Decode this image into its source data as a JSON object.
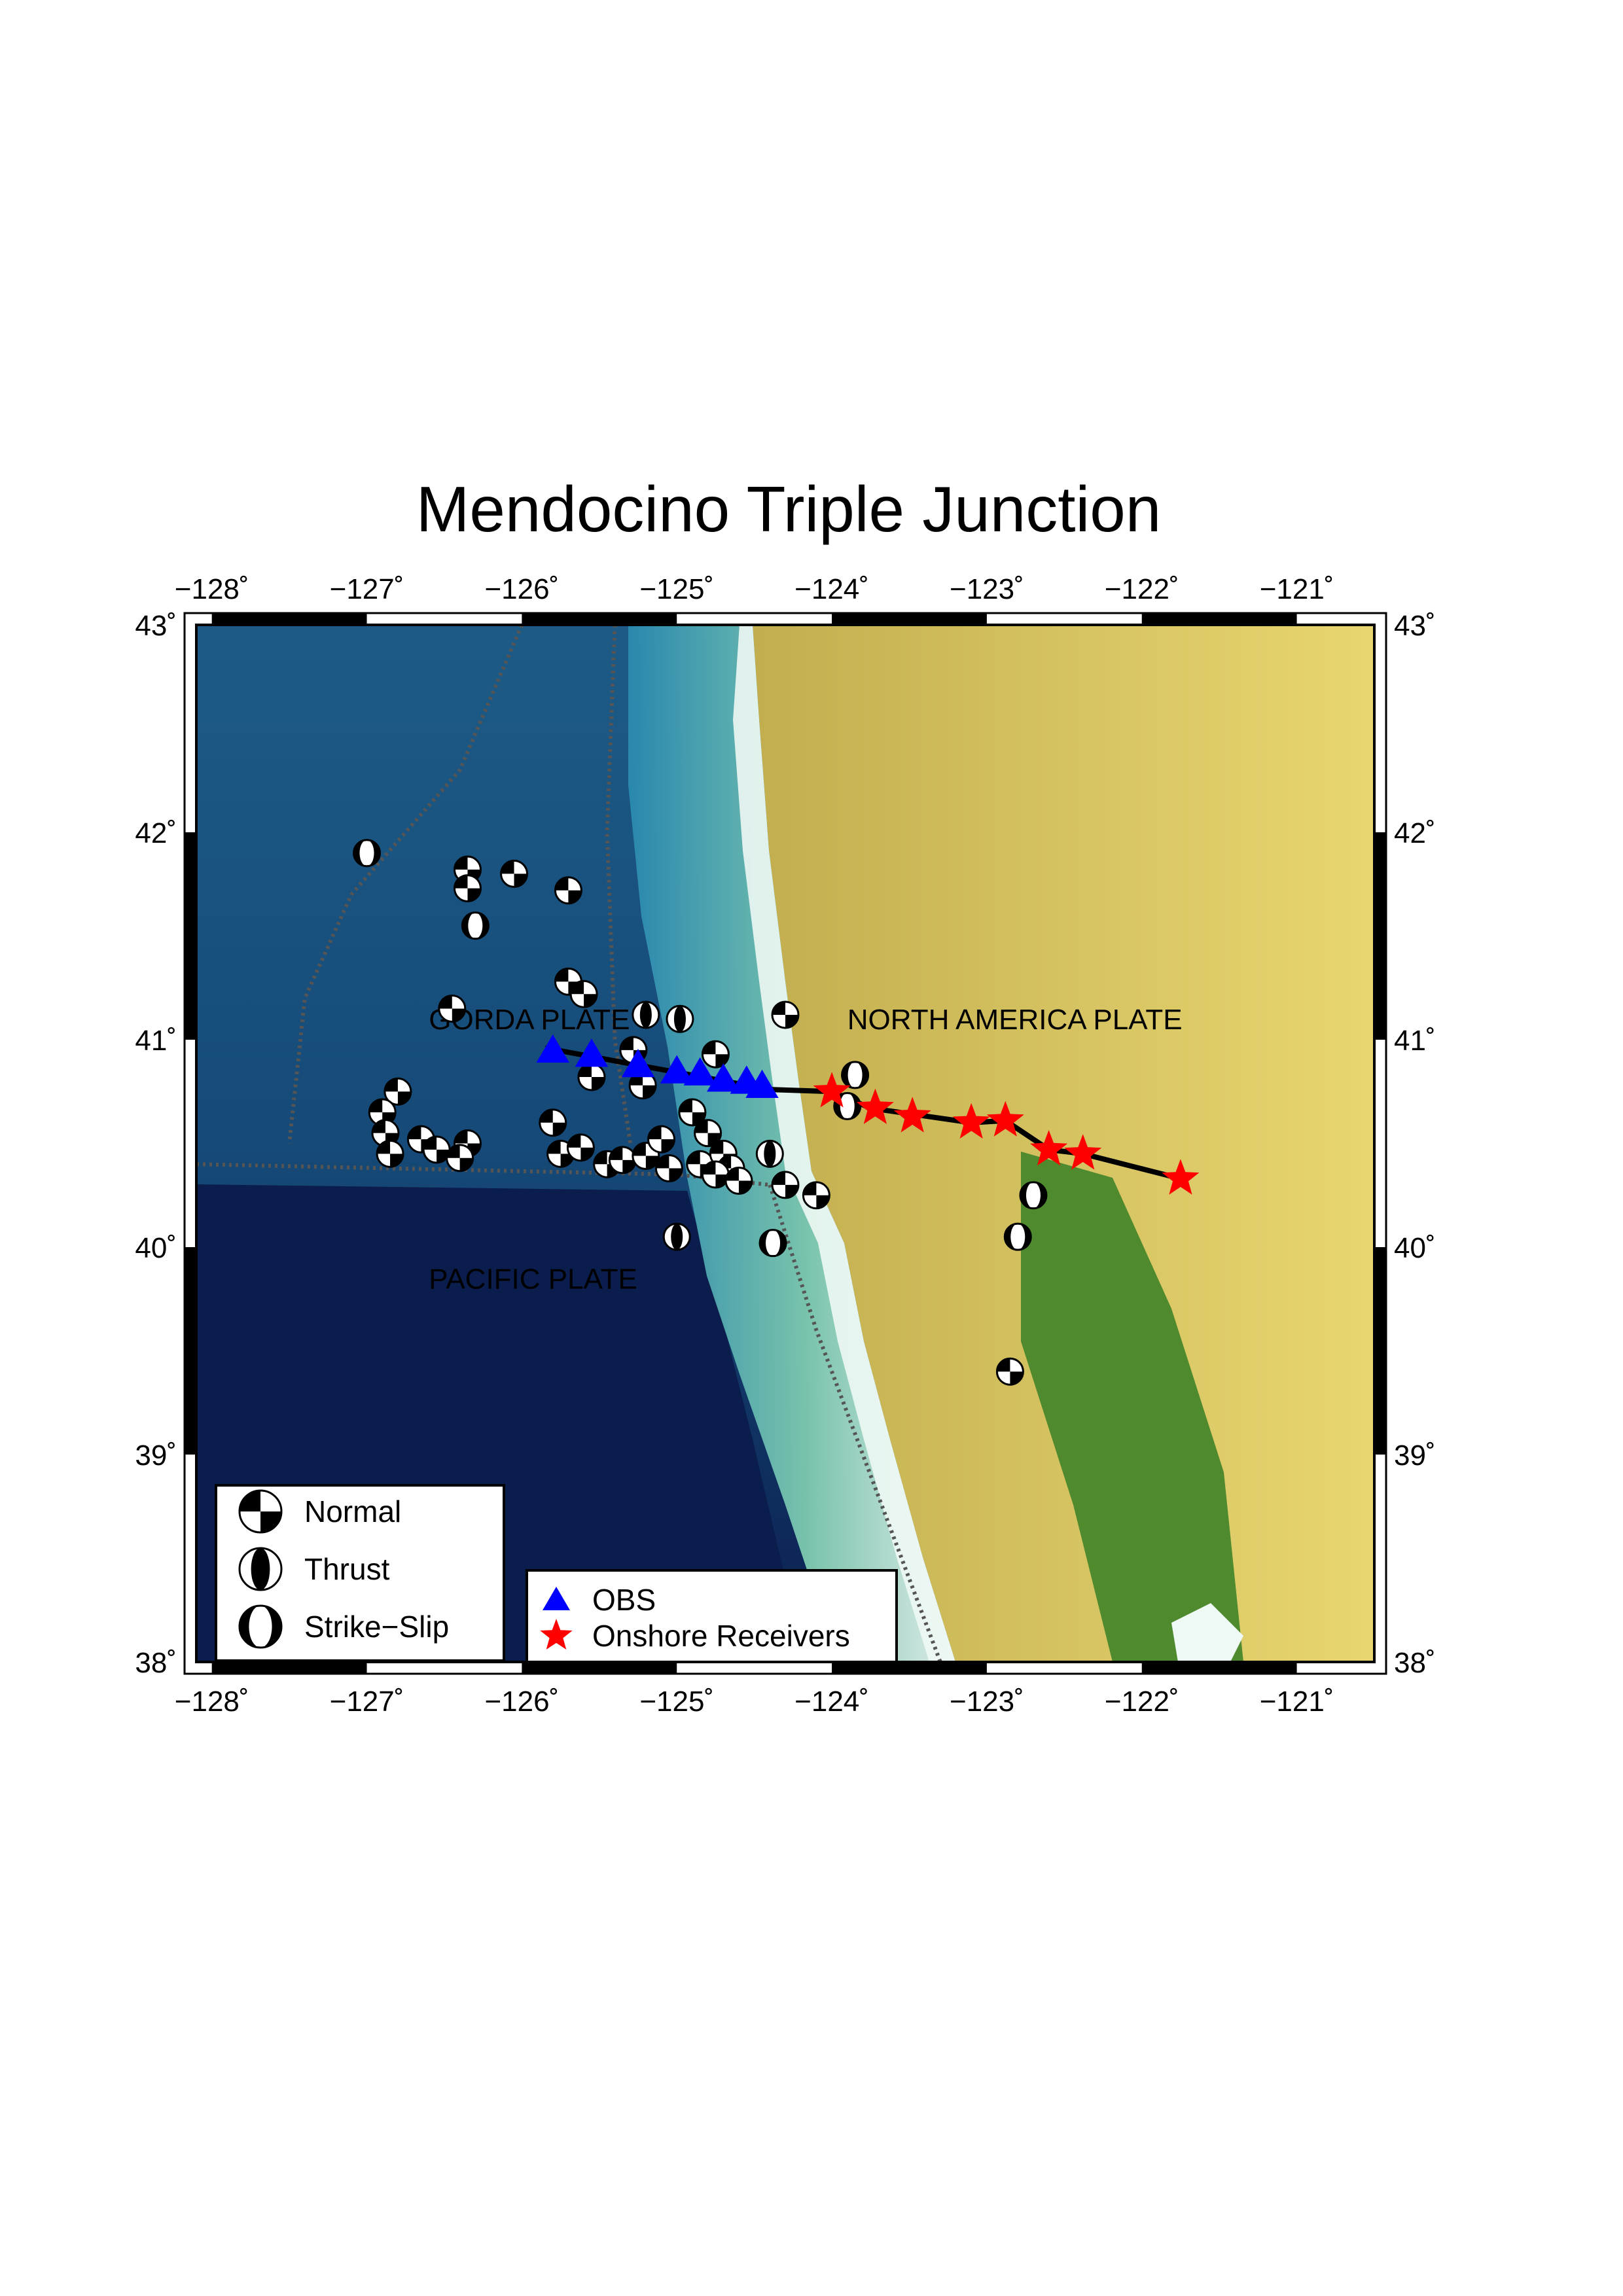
{
  "title": "Mendocino Triple Junction",
  "extent": {
    "lon_min": -128.1,
    "lon_max": -120.5,
    "lat_min": 38.0,
    "lat_max": 43.0
  },
  "lon_ticks": [
    {
      "value": -128,
      "label": "−128˚"
    },
    {
      "value": -127,
      "label": "−127˚"
    },
    {
      "value": -126,
      "label": "−126˚"
    },
    {
      "value": -125,
      "label": "−125˚"
    },
    {
      "value": -124,
      "label": "−124˚"
    },
    {
      "value": -123,
      "label": "−123˚"
    },
    {
      "value": -122,
      "label": "−122˚"
    },
    {
      "value": -121,
      "label": "−121˚"
    }
  ],
  "lat_ticks": [
    {
      "value": 43,
      "label": "43˚"
    },
    {
      "value": 42,
      "label": "42˚"
    },
    {
      "value": 41,
      "label": "41˚"
    },
    {
      "value": 40,
      "label": "40˚"
    },
    {
      "value": 39,
      "label": "39˚"
    },
    {
      "value": 38,
      "label": "38˚"
    }
  ],
  "plate_labels": [
    {
      "text": "GORDA PLATE",
      "lon": -126.6,
      "lat": 41.05
    },
    {
      "text": "NORTH AMERICA PLATE",
      "lon": -123.9,
      "lat": 41.05
    },
    {
      "text": "PACIFIC PLATE",
      "lon": -126.6,
      "lat": 39.8
    }
  ],
  "colors": {
    "deep_ocean": "#0a1a4a",
    "ocean": "#1e5a8a",
    "shelf": "#7ec8b0",
    "coast": "#e8f6f0",
    "land_low": "#4a7a2a",
    "land_mid": "#b8a24a",
    "land_high": "#e6d470",
    "obs": "#0000ff",
    "onshore": "#ff0000",
    "profile": "#000000",
    "plate_boundary": "#555555"
  },
  "obs_stations": [
    {
      "lon": -125.8,
      "lat": 40.95
    },
    {
      "lon": -125.55,
      "lat": 40.93
    },
    {
      "lon": -125.25,
      "lat": 40.88
    },
    {
      "lon": -125.0,
      "lat": 40.85
    },
    {
      "lon": -124.85,
      "lat": 40.84
    },
    {
      "lon": -124.7,
      "lat": 40.81
    },
    {
      "lon": -124.55,
      "lat": 40.8
    },
    {
      "lon": -124.45,
      "lat": 40.78
    }
  ],
  "onshore_receivers": [
    {
      "lon": -124.0,
      "lat": 40.75
    },
    {
      "lon": -123.72,
      "lat": 40.67
    },
    {
      "lon": -123.48,
      "lat": 40.63
    },
    {
      "lon": -123.1,
      "lat": 40.6
    },
    {
      "lon": -122.88,
      "lat": 40.61
    },
    {
      "lon": -122.6,
      "lat": 40.47
    },
    {
      "lon": -122.38,
      "lat": 40.45
    },
    {
      "lon": -121.75,
      "lat": 40.33
    }
  ],
  "profile_line": [
    [
      -125.85,
      40.96
    ],
    [
      -124.4,
      40.76
    ],
    [
      -124.0,
      40.75
    ],
    [
      -123.75,
      40.67
    ],
    [
      -123.1,
      40.6
    ],
    [
      -122.88,
      40.61
    ],
    [
      -122.6,
      40.47
    ],
    [
      -122.38,
      40.45
    ],
    [
      -121.75,
      40.33
    ]
  ],
  "plate_boundaries": [
    [
      [
        -126.0,
        43.0
      ],
      [
        -126.4,
        42.3
      ],
      [
        -127.1,
        41.7
      ],
      [
        -127.4,
        41.2
      ],
      [
        -127.5,
        40.5
      ]
    ],
    [
      [
        -125.4,
        43.0
      ],
      [
        -125.45,
        42.0
      ],
      [
        -125.4,
        41.0
      ],
      [
        -125.3,
        40.5
      ]
    ],
    [
      [
        -128.1,
        40.4
      ],
      [
        -125.0,
        40.35
      ],
      [
        -124.4,
        40.3
      ]
    ],
    [
      [
        -124.4,
        40.3
      ],
      [
        -124.1,
        39.6
      ],
      [
        -123.7,
        38.8
      ],
      [
        -123.3,
        38.0
      ]
    ]
  ],
  "focal_mechanisms": [
    {
      "lon": -127.0,
      "lat": 41.9,
      "type": "strike-slip"
    },
    {
      "lon": -126.35,
      "lat": 41.82,
      "type": "normal"
    },
    {
      "lon": -126.35,
      "lat": 41.73,
      "type": "normal"
    },
    {
      "lon": -126.05,
      "lat": 41.8,
      "type": "normal"
    },
    {
      "lon": -126.3,
      "lat": 41.55,
      "type": "strike-slip"
    },
    {
      "lon": -125.7,
      "lat": 41.72,
      "type": "normal"
    },
    {
      "lon": -126.45,
      "lat": 41.15,
      "type": "normal"
    },
    {
      "lon": -125.7,
      "lat": 41.28,
      "type": "normal"
    },
    {
      "lon": -125.6,
      "lat": 41.22,
      "type": "normal"
    },
    {
      "lon": -125.2,
      "lat": 41.12,
      "type": "thrust"
    },
    {
      "lon": -124.98,
      "lat": 41.1,
      "type": "thrust"
    },
    {
      "lon": -125.28,
      "lat": 40.95,
      "type": "normal"
    },
    {
      "lon": -124.75,
      "lat": 40.93,
      "type": "normal"
    },
    {
      "lon": -125.55,
      "lat": 40.82,
      "type": "normal"
    },
    {
      "lon": -125.22,
      "lat": 40.78,
      "type": "normal"
    },
    {
      "lon": -124.3,
      "lat": 41.12,
      "type": "normal"
    },
    {
      "lon": -123.85,
      "lat": 40.83,
      "type": "strike-slip"
    },
    {
      "lon": -126.8,
      "lat": 40.75,
      "type": "normal"
    },
    {
      "lon": -126.9,
      "lat": 40.65,
      "type": "normal"
    },
    {
      "lon": -126.88,
      "lat": 40.55,
      "type": "normal"
    },
    {
      "lon": -126.65,
      "lat": 40.52,
      "type": "normal"
    },
    {
      "lon": -126.55,
      "lat": 40.47,
      "type": "normal"
    },
    {
      "lon": -126.35,
      "lat": 40.5,
      "type": "normal"
    },
    {
      "lon": -126.4,
      "lat": 40.43,
      "type": "normal"
    },
    {
      "lon": -126.85,
      "lat": 40.45,
      "type": "normal"
    },
    {
      "lon": -125.8,
      "lat": 40.6,
      "type": "normal"
    },
    {
      "lon": -125.75,
      "lat": 40.45,
      "type": "normal"
    },
    {
      "lon": -125.62,
      "lat": 40.48,
      "type": "normal"
    },
    {
      "lon": -125.45,
      "lat": 40.4,
      "type": "normal"
    },
    {
      "lon": -125.35,
      "lat": 40.42,
      "type": "normal"
    },
    {
      "lon": -125.2,
      "lat": 40.44,
      "type": "normal"
    },
    {
      "lon": -125.1,
      "lat": 40.52,
      "type": "normal"
    },
    {
      "lon": -125.05,
      "lat": 40.38,
      "type": "normal"
    },
    {
      "lon": -124.9,
      "lat": 40.65,
      "type": "normal"
    },
    {
      "lon": -124.8,
      "lat": 40.55,
      "type": "normal"
    },
    {
      "lon": -124.85,
      "lat": 40.4,
      "type": "normal"
    },
    {
      "lon": -124.7,
      "lat": 40.45,
      "type": "normal"
    },
    {
      "lon": -124.65,
      "lat": 40.38,
      "type": "normal"
    },
    {
      "lon": -124.75,
      "lat": 40.35,
      "type": "normal"
    },
    {
      "lon": -124.6,
      "lat": 40.32,
      "type": "normal"
    },
    {
      "lon": -124.4,
      "lat": 40.45,
      "type": "thrust"
    },
    {
      "lon": -124.3,
      "lat": 40.3,
      "type": "normal"
    },
    {
      "lon": -124.1,
      "lat": 40.25,
      "type": "normal"
    },
    {
      "lon": -125.0,
      "lat": 40.05,
      "type": "thrust"
    },
    {
      "lon": -124.38,
      "lat": 40.02,
      "type": "strike-slip"
    },
    {
      "lon": -123.9,
      "lat": 40.68,
      "type": "strike-slip"
    },
    {
      "lon": -122.7,
      "lat": 40.25,
      "type": "strike-slip"
    },
    {
      "lon": -122.8,
      "lat": 40.05,
      "type": "strike-slip"
    },
    {
      "lon": -122.85,
      "lat": 39.4,
      "type": "normal"
    }
  ],
  "mech_legend": [
    {
      "type": "normal",
      "label": "Normal"
    },
    {
      "type": "thrust",
      "label": "Thrust"
    },
    {
      "type": "strike-slip",
      "label": "Strike−Slip"
    }
  ],
  "station_legend": [
    {
      "symbol": "triangle",
      "label": "OBS"
    },
    {
      "symbol": "star",
      "label": "Onshore Receivers"
    }
  ]
}
